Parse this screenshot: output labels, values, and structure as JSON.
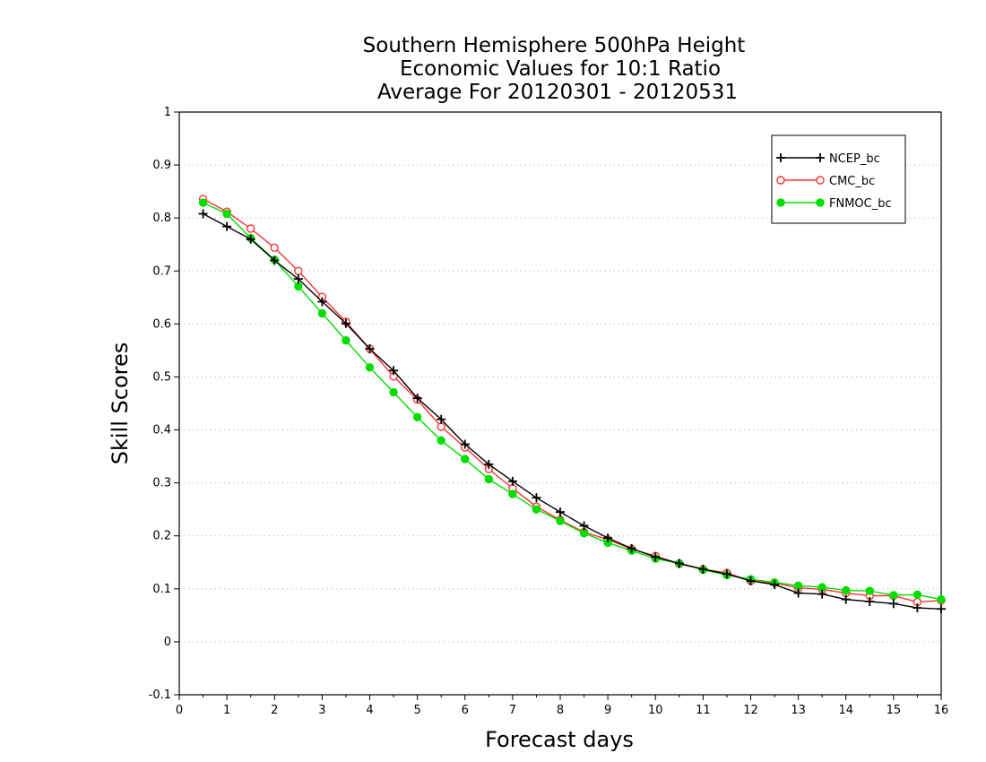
{
  "chart_data": {
    "type": "line",
    "title_lines": [
      "Southern Hemisphere 500hPa Height",
      "Economic Values for 10:1 Ratio",
      "Average For 20120301 - 20120531"
    ],
    "xlabel": "Forecast days",
    "ylabel": "Skill Scores",
    "xlim": [
      0,
      16
    ],
    "ylim": [
      -0.1,
      1
    ],
    "x_ticks": [
      "0",
      "1",
      "2",
      "3",
      "4",
      "5",
      "6",
      "7",
      "8",
      "9",
      "10",
      "11",
      "12",
      "13",
      "14",
      "15",
      "16"
    ],
    "y_ticks": [
      "-0.1",
      "0",
      "0.1",
      "0.2",
      "0.3",
      "0.4",
      "0.5",
      "0.6",
      "0.7",
      "0.8",
      "0.9",
      "1"
    ],
    "grid": "horizontal dotted",
    "legend_position": "top-right",
    "x": [
      0.5,
      1,
      1.5,
      2,
      2.5,
      3,
      3.5,
      4,
      4.5,
      5,
      5.5,
      6,
      6.5,
      7,
      7.5,
      8,
      8.5,
      9,
      9.5,
      10,
      10.5,
      11,
      11.5,
      12,
      12.5,
      13,
      13.5,
      14,
      14.5,
      15,
      15.5,
      16
    ],
    "series": [
      {
        "name": "NCEP_bc",
        "color": "#000000",
        "marker": "plus",
        "values": [
          0.808,
          0.784,
          0.76,
          0.72,
          0.685,
          0.642,
          0.601,
          0.553,
          0.512,
          0.46,
          0.42,
          0.373,
          0.335,
          0.303,
          0.272,
          0.245,
          0.219,
          0.196,
          0.176,
          0.16,
          0.148,
          0.137,
          0.128,
          0.115,
          0.108,
          0.092,
          0.09,
          0.08,
          0.076,
          0.072,
          0.064,
          0.062
        ]
      },
      {
        "name": "CMC_bc",
        "color": "#ff3333",
        "marker": "open-circle",
        "values": [
          0.836,
          0.812,
          0.78,
          0.744,
          0.7,
          0.651,
          0.604,
          0.553,
          0.501,
          0.457,
          0.406,
          0.367,
          0.326,
          0.29,
          0.255,
          0.23,
          0.207,
          0.193,
          0.175,
          0.162,
          0.147,
          0.137,
          0.13,
          0.115,
          0.111,
          0.102,
          0.099,
          0.092,
          0.087,
          0.087,
          0.075,
          0.078
        ]
      },
      {
        "name": "FNMOC_bc",
        "color": "#00dd00",
        "marker": "filled-circle",
        "values": [
          0.829,
          0.808,
          0.762,
          0.721,
          0.671,
          0.62,
          0.569,
          0.518,
          0.471,
          0.424,
          0.38,
          0.345,
          0.307,
          0.279,
          0.25,
          0.228,
          0.205,
          0.187,
          0.172,
          0.157,
          0.148,
          0.136,
          0.126,
          0.118,
          0.112,
          0.106,
          0.103,
          0.097,
          0.096,
          0.088,
          0.089,
          0.08
        ]
      }
    ]
  }
}
